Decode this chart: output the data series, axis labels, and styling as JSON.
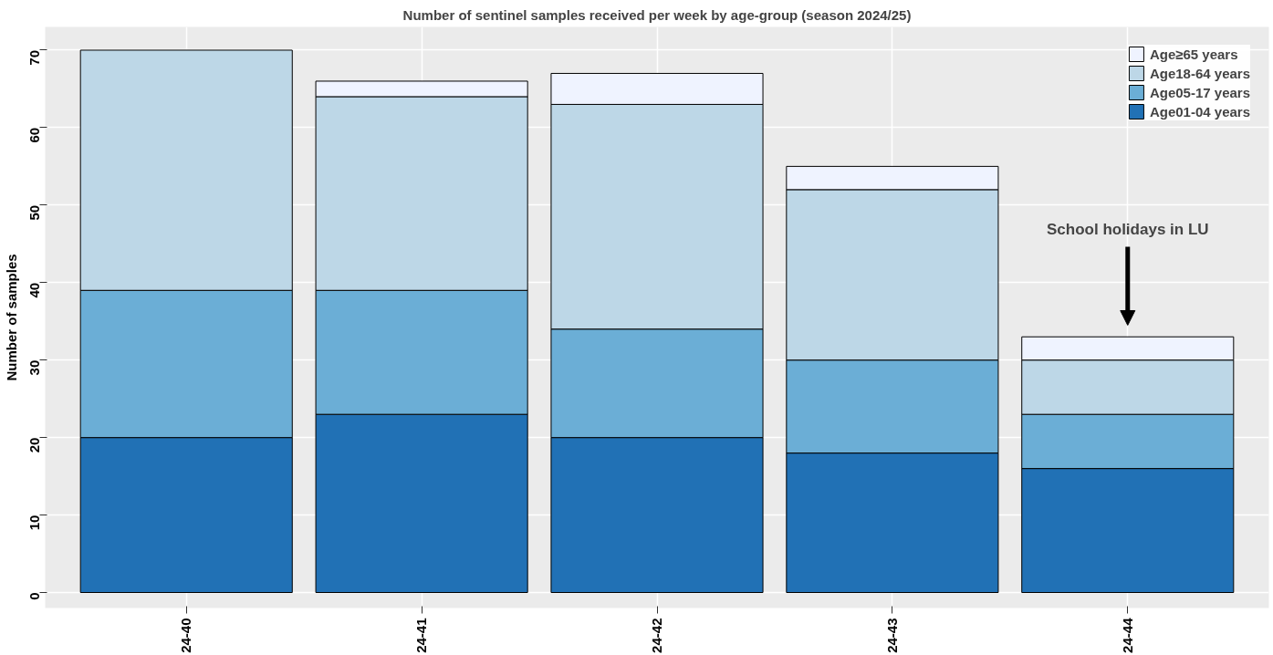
{
  "chart_data": {
    "type": "bar",
    "stacked": true,
    "title": "Number of sentinel samples received per week by age-group (season 2024/25)",
    "ylabel": "Number of samples",
    "categories": [
      "24-40",
      "24-41",
      "24-42",
      "24-43",
      "24-44"
    ],
    "series": [
      {
        "name": "Age01-04 years",
        "color": "#2171b5",
        "values": [
          20,
          23,
          20,
          18,
          16
        ]
      },
      {
        "name": "Age05-17 years",
        "color": "#6baed6",
        "values": [
          19,
          16,
          14,
          12,
          7
        ]
      },
      {
        "name": "Age18-64 years",
        "color": "#bdd7e7",
        "values": [
          31,
          25,
          29,
          22,
          7
        ]
      },
      {
        "name": "Age≥65 years",
        "color": "#eff3ff",
        "values": [
          0,
          2,
          4,
          3,
          3
        ]
      }
    ],
    "ylim": [
      -2,
      73
    ],
    "yticks": [
      0,
      10,
      20,
      30,
      40,
      50,
      60,
      70
    ],
    "grid": true,
    "legend": "top right",
    "annotations": [
      "School holidays in LU"
    ]
  }
}
